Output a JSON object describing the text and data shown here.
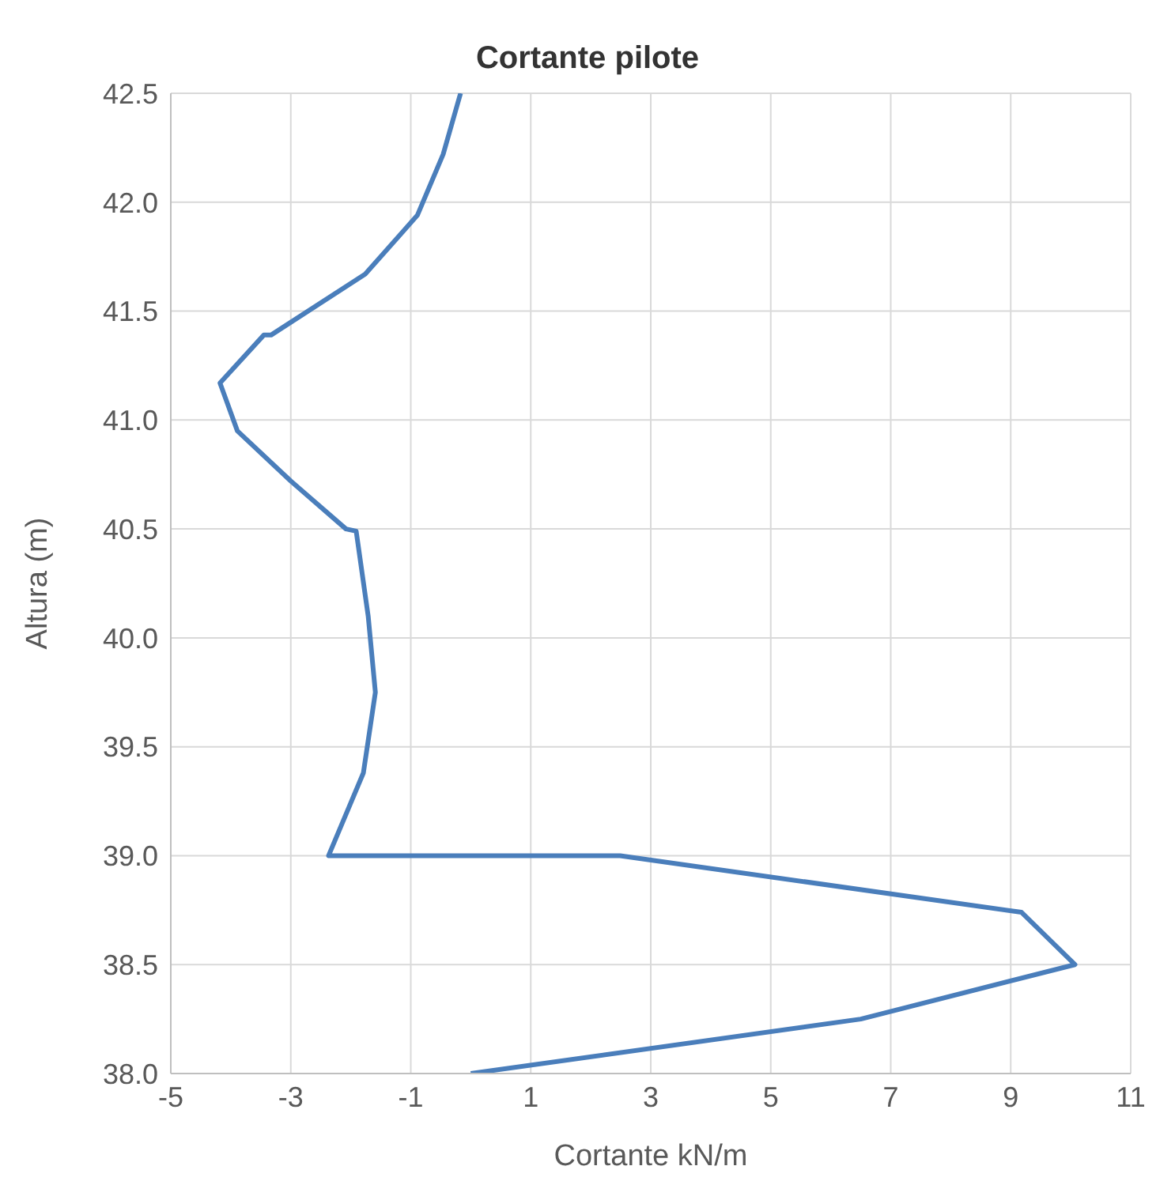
{
  "chart_data": {
    "type": "line",
    "title": "Cortante pilote",
    "xlabel": "Cortante kN/m",
    "ylabel": "Altura (m)",
    "x": [
      -0.17,
      -0.46,
      -0.89,
      -1.76,
      -3.33,
      -3.45,
      -4.18,
      -3.89,
      -3.0,
      -2.08,
      -1.91,
      -1.71,
      -1.59,
      -1.79,
      -2.37,
      2.49,
      9.18,
      10.07,
      6.5,
      0
    ],
    "series": [
      {
        "color": "#4a7ebb",
        "values": [
          42.5,
          42.22,
          41.94,
          41.67,
          41.39,
          41.39,
          41.17,
          40.95,
          40.72,
          40.5,
          40.49,
          40.1,
          39.75,
          39.38,
          39.0,
          39.0,
          38.74,
          38.5,
          38.25,
          38.0
        ]
      }
    ],
    "xlim": [
      -5,
      11
    ],
    "xticks": [
      -5,
      -3,
      -1,
      1,
      3,
      5,
      7,
      9,
      11
    ],
    "ylim": [
      38.0,
      42.5
    ],
    "yticks": [
      {
        "value": 38,
        "label": "38.0"
      },
      {
        "value": 38.5,
        "label": "38.5"
      },
      {
        "value": 39,
        "label": "39.0"
      },
      {
        "value": 39.5,
        "label": "39.5"
      },
      {
        "value": 40,
        "label": "40.0"
      },
      {
        "value": 40.5,
        "label": "40.5"
      },
      {
        "value": 41,
        "label": "41.0"
      },
      {
        "value": 41.5,
        "label": "41.5"
      },
      {
        "value": 42,
        "label": "42.0"
      },
      {
        "value": 42.5,
        "label": "42.5"
      }
    ],
    "grid": true,
    "marker": "none",
    "line_style": "solid"
  }
}
